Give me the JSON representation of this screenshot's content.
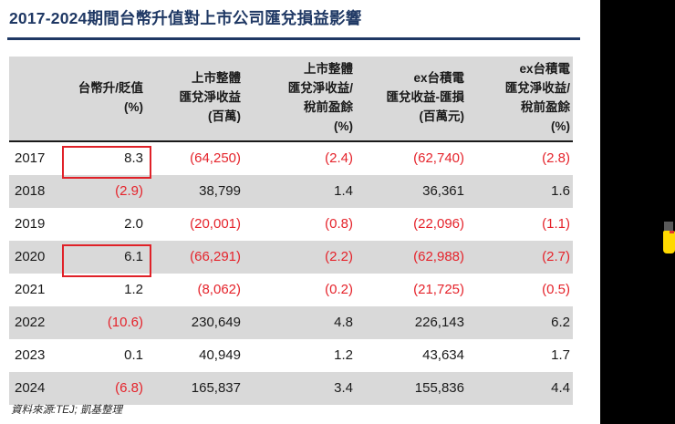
{
  "title": "2017-2024期間台幣升值對上市公司匯兌損益影響",
  "source_note": "資料來源:TEJ; 凱基整理",
  "table": {
    "columns": [
      "",
      "台幣升/貶值\n(%)",
      "上市整體\n匯兌淨收益\n(百萬)",
      "上市整體\n匯兌淨收益/\n稅前盈餘\n(%)",
      "ex台積電\n匯兌收益-匯損\n(百萬元)",
      "ex台積電\n匯兌淨收益/\n稅前盈餘\n(%)"
    ],
    "rows": [
      {
        "year": "2017",
        "values": [
          "8.3",
          "(64,250)",
          "(2.4)",
          "(62,740)",
          "(2.8)"
        ],
        "boxed": true,
        "shaded": false
      },
      {
        "year": "2018",
        "values": [
          "(2.9)",
          "38,799",
          "1.4",
          "36,361",
          "1.6"
        ],
        "boxed": false,
        "shaded": true
      },
      {
        "year": "2019",
        "values": [
          "2.0",
          "(20,001)",
          "(0.8)",
          "(22,096)",
          "(1.1)"
        ],
        "boxed": false,
        "shaded": false
      },
      {
        "year": "2020",
        "values": [
          "6.1",
          "(66,291)",
          "(2.2)",
          "(62,988)",
          "(2.7)"
        ],
        "boxed": true,
        "shaded": true
      },
      {
        "year": "2021",
        "values": [
          "1.2",
          "(8,062)",
          "(0.2)",
          "(21,725)",
          "(0.5)"
        ],
        "boxed": false,
        "shaded": false
      },
      {
        "year": "2022",
        "values": [
          "(10.6)",
          "230,649",
          "4.8",
          "226,143",
          "6.2"
        ],
        "boxed": false,
        "shaded": true
      },
      {
        "year": "2023",
        "values": [
          "0.1",
          "40,949",
          "1.2",
          "43,634",
          "1.7"
        ],
        "boxed": false,
        "shaded": false
      },
      {
        "year": "2024",
        "values": [
          "(6.8)",
          "165,837",
          "3.4",
          "155,836",
          "4.4"
        ],
        "boxed": false,
        "shaded": true
      }
    ]
  },
  "colors": {
    "title_navy": "#1F3864",
    "negative_red": "#E5232B",
    "highlight_box_red": "#E02128",
    "row_shade_gray": "#D9D9D9",
    "header_border_black": "#1A1A1A",
    "sidebar_black": "#000000",
    "marker_yellow": "#FFD900"
  }
}
